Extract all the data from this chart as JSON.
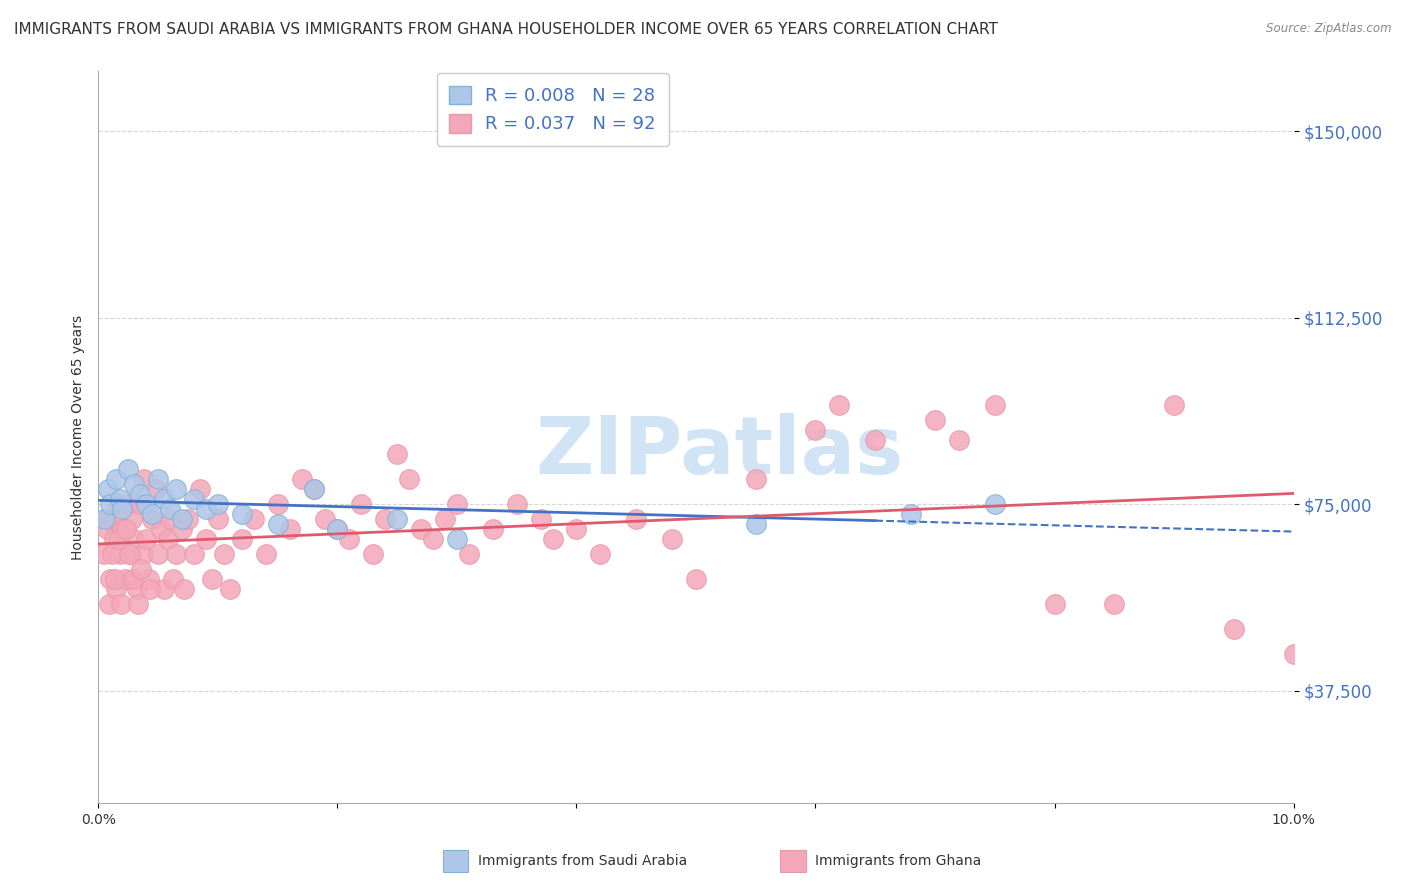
{
  "title": "IMMIGRANTS FROM SAUDI ARABIA VS IMMIGRANTS FROM GHANA HOUSEHOLDER INCOME OVER 65 YEARS CORRELATION CHART",
  "source": "Source: ZipAtlas.com",
  "ylabel": "Householder Income Over 65 years",
  "xlabel": "",
  "xlim": [
    0.0,
    10.0
  ],
  "ylim": [
    15000,
    162000
  ],
  "yticks": [
    37500,
    75000,
    112500,
    150000
  ],
  "ytick_labels": [
    "$37,500",
    "$75,000",
    "$112,500",
    "$150,000"
  ],
  "xticks": [
    0.0,
    2.0,
    4.0,
    6.0,
    8.0,
    10.0
  ],
  "xtick_labels": [
    "0.0%",
    "",
    "",
    "",
    "",
    "10.0%"
  ],
  "legend_entries": [
    {
      "label": "Immigrants from Saudi Arabia",
      "color": "#aec6e8",
      "R": 0.008,
      "N": 28
    },
    {
      "label": "Immigrants from Ghana",
      "color": "#f4a7b9",
      "R": 0.037,
      "N": 92
    }
  ],
  "saudi_x": [
    0.05,
    0.08,
    0.1,
    0.15,
    0.18,
    0.2,
    0.25,
    0.3,
    0.35,
    0.4,
    0.45,
    0.5,
    0.55,
    0.6,
    0.65,
    0.7,
    0.8,
    0.9,
    1.0,
    1.2,
    1.5,
    1.8,
    2.0,
    2.5,
    3.0,
    5.5,
    6.8,
    7.5
  ],
  "saudi_y": [
    72000,
    78000,
    75000,
    80000,
    76000,
    74000,
    82000,
    79000,
    77000,
    75000,
    73000,
    80000,
    76000,
    74000,
    78000,
    72000,
    76000,
    74000,
    75000,
    73000,
    71000,
    78000,
    70000,
    72000,
    68000,
    71000,
    73000,
    75000
  ],
  "ghana_x": [
    0.05,
    0.07,
    0.09,
    0.1,
    0.12,
    0.13,
    0.15,
    0.16,
    0.18,
    0.2,
    0.22,
    0.25,
    0.27,
    0.28,
    0.3,
    0.32,
    0.35,
    0.37,
    0.38,
    0.4,
    0.42,
    0.45,
    0.48,
    0.5,
    0.52,
    0.55,
    0.58,
    0.6,
    0.62,
    0.65,
    0.7,
    0.72,
    0.75,
    0.8,
    0.85,
    0.9,
    0.95,
    1.0,
    1.05,
    1.1,
    1.2,
    1.3,
    1.4,
    1.5,
    1.6,
    1.7,
    1.8,
    1.9,
    2.0,
    2.1,
    2.2,
    2.3,
    2.4,
    2.5,
    2.6,
    2.7,
    2.8,
    2.9,
    3.0,
    3.1,
    3.3,
    3.5,
    3.7,
    3.8,
    4.0,
    4.2,
    4.5,
    4.8,
    5.0,
    5.5,
    6.0,
    6.2,
    6.5,
    7.0,
    7.2,
    7.5,
    8.0,
    8.5,
    9.0,
    9.5,
    10.0,
    0.06,
    0.11,
    0.14,
    0.17,
    0.19,
    0.23,
    0.26,
    0.29,
    0.33,
    0.36,
    0.43
  ],
  "ghana_y": [
    65000,
    70000,
    55000,
    60000,
    72000,
    68000,
    58000,
    75000,
    65000,
    70000,
    60000,
    75000,
    65000,
    72000,
    68000,
    58000,
    75000,
    65000,
    80000,
    68000,
    60000,
    72000,
    78000,
    65000,
    70000,
    58000,
    68000,
    72000,
    60000,
    65000,
    70000,
    58000,
    72000,
    65000,
    78000,
    68000,
    60000,
    72000,
    65000,
    58000,
    68000,
    72000,
    65000,
    75000,
    70000,
    80000,
    78000,
    72000,
    70000,
    68000,
    75000,
    65000,
    72000,
    85000,
    80000,
    70000,
    68000,
    72000,
    75000,
    65000,
    70000,
    75000,
    72000,
    68000,
    70000,
    65000,
    72000,
    68000,
    60000,
    80000,
    90000,
    95000,
    88000,
    92000,
    88000,
    95000,
    55000,
    55000,
    95000,
    50000,
    45000,
    72000,
    65000,
    60000,
    68000,
    55000,
    70000,
    65000,
    60000,
    55000,
    62000,
    58000
  ],
  "saudi_line_color": "#4472c4",
  "ghana_line_color": "#e05a6e",
  "scatter_saudi_color": "#aec6e8",
  "scatter_edge_saudi": "#7fb3d9",
  "scatter_ghana_color": "#f4a7b9",
  "scatter_edge_ghana": "#e89aaa",
  "background_color": "#ffffff",
  "grid_color": "#cccccc",
  "title_fontsize": 11,
  "axis_label_fontsize": 10,
  "tick_label_color": "#4472c4",
  "watermark_text": "ZIPatlas",
  "watermark_color": "#d0e4f5",
  "watermark_fontsize": 58
}
